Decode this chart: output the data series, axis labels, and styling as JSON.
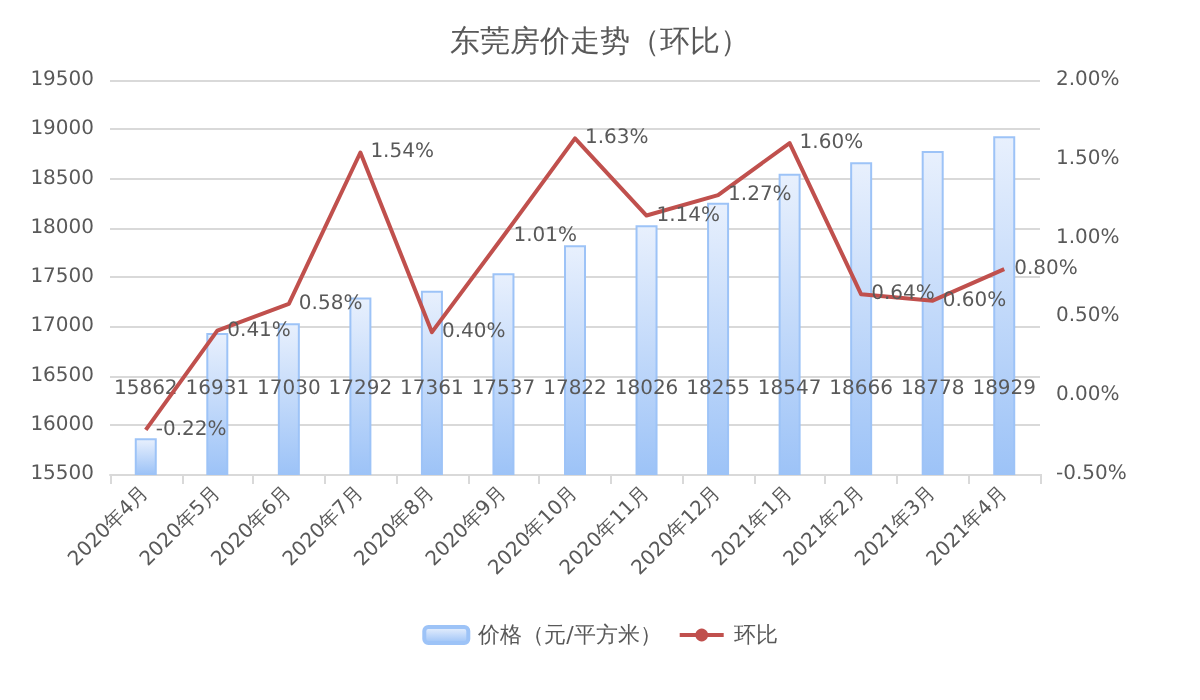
{
  "chart_data": {
    "type": "bar",
    "title": "东莞房价走势（环比）",
    "categories": [
      "2020年4月",
      "2020年5月",
      "2020年6月",
      "2020年7月",
      "2020年8月",
      "2020年9月",
      "2020年10月",
      "2020年11月",
      "2020年12月",
      "2021年1月",
      "2021年2月",
      "2021年3月",
      "2021年4月"
    ],
    "series": [
      {
        "name": "价格（元/平方米）",
        "color": "#9dc3f7",
        "values": [
          15862,
          16931,
          17030,
          17292,
          17361,
          17537,
          17822,
          18026,
          18255,
          18547,
          18666,
          18778,
          18929
        ],
        "value_labels": [
          "15862",
          "16931",
          "17030",
          "17292",
          "17361",
          "17537",
          "17822",
          "18026",
          "18255",
          "18547",
          "18666",
          "18778",
          "18929"
        ]
      },
      {
        "name": "环比",
        "type": "line",
        "axis": "y2",
        "color": "#c0504d",
        "values": [
          -0.22,
          0.41,
          0.58,
          1.54,
          0.4,
          1.01,
          1.63,
          1.14,
          1.27,
          1.6,
          0.64,
          0.6,
          0.8
        ],
        "value_labels": [
          "-0.22%",
          "0.41%",
          "0.58%",
          "1.54%",
          "0.40%",
          "1.01%",
          "1.63%",
          "1.14%",
          "1.27%",
          "1.60%",
          "0.64%",
          "0.60%",
          "0.80%"
        ]
      }
    ],
    "ylim": [
      15500,
      19500
    ],
    "yticks": [
      15500,
      16000,
      16500,
      17000,
      17500,
      18000,
      18500,
      19000,
      19500
    ],
    "y2lim": [
      -0.5,
      2.0
    ],
    "y2ticks": [
      {
        "value": -0.5,
        "label": "-0.50%"
      },
      {
        "value": 0,
        "label": "0.00%"
      },
      {
        "value": 0.5,
        "label": "0.50%"
      },
      {
        "value": 1.0,
        "label": "1.00%"
      },
      {
        "value": 1.5,
        "label": "1.50%"
      },
      {
        "value": 2.0,
        "label": "2.00%"
      }
    ],
    "grid": "y",
    "legend": "bottom",
    "marker": "none"
  }
}
